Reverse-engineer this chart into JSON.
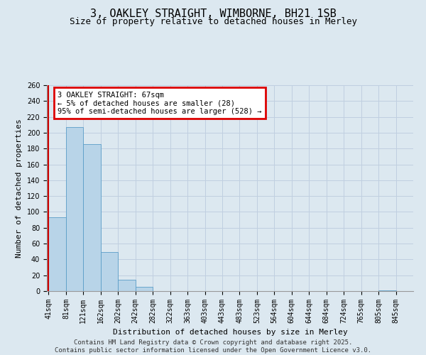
{
  "title": "3, OAKLEY STRAIGHT, WIMBORNE, BH21 1SB",
  "subtitle": "Size of property relative to detached houses in Merley",
  "xlabel": "Distribution of detached houses by size in Merley",
  "ylabel": "Number of detached properties",
  "bar_values": [
    93,
    207,
    186,
    49,
    14,
    5,
    0,
    0,
    0,
    0,
    0,
    0,
    0,
    0,
    0,
    0,
    0,
    0,
    0,
    1
  ],
  "categories": [
    "41sqm",
    "81sqm",
    "121sqm",
    "162sqm",
    "202sqm",
    "242sqm",
    "282sqm",
    "322sqm",
    "363sqm",
    "403sqm",
    "443sqm",
    "483sqm",
    "523sqm",
    "564sqm",
    "604sqm",
    "644sqm",
    "684sqm",
    "724sqm",
    "765sqm",
    "805sqm",
    "845sqm"
  ],
  "bar_color": "#b8d4e8",
  "bar_edge_color": "#5a9dc8",
  "ylim": [
    0,
    260
  ],
  "yticks": [
    0,
    20,
    40,
    60,
    80,
    100,
    120,
    140,
    160,
    180,
    200,
    220,
    240,
    260
  ],
  "annotation_line1": "3 OAKLEY STRAIGHT: 67sqm",
  "annotation_line2": "← 5% of detached houses are smaller (28)",
  "annotation_line3": "95% of semi-detached houses are larger (528) →",
  "annotation_box_color": "#dd0000",
  "annotation_bg": "#ffffff",
  "vline_color": "#cc0000",
  "grid_color": "#c0cfe0",
  "bg_color": "#dce8f0",
  "footer_line1": "Contains HM Land Registry data © Crown copyright and database right 2025.",
  "footer_line2": "Contains public sector information licensed under the Open Government Licence v3.0.",
  "title_fontsize": 11,
  "subtitle_fontsize": 9,
  "axis_label_fontsize": 8,
  "tick_fontsize": 7,
  "annotation_fontsize": 7.5,
  "footer_fontsize": 6.5
}
